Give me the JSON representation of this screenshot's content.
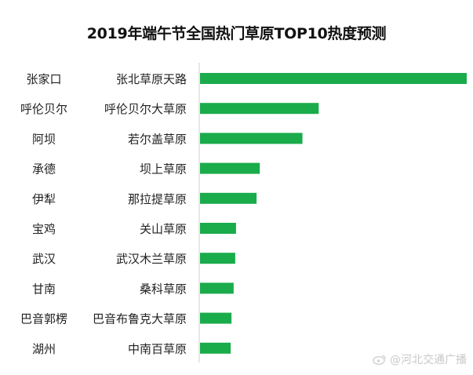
{
  "chart_data": {
    "type": "bar",
    "orientation": "horizontal",
    "title": "2019年端午节全国热门草原TOP10热度预测",
    "regions": [
      "张家口",
      "呼伦贝尔",
      "阿坝",
      "承德",
      "伊犁",
      "宝鸡",
      "武汉",
      "甘南",
      "巴音郭楞",
      "湖州"
    ],
    "categories": [
      "张北草原天路",
      "呼伦贝尔大草原",
      "若尔盖草原",
      "坝上草原",
      "那拉提草原",
      "关山草原",
      "武汉木兰草原",
      "桑科草原",
      "巴音布鲁克大草原",
      "中南百草原"
    ],
    "values": [
      100,
      44.5,
      38.4,
      22.4,
      21.2,
      13.5,
      13.2,
      12.6,
      11.8,
      11.5
    ],
    "bar_color": "#1aab4b",
    "axis_color": "#cfcfcf",
    "grid": false,
    "legend": "none"
  },
  "watermark": {
    "text": "@河北交通广播"
  }
}
